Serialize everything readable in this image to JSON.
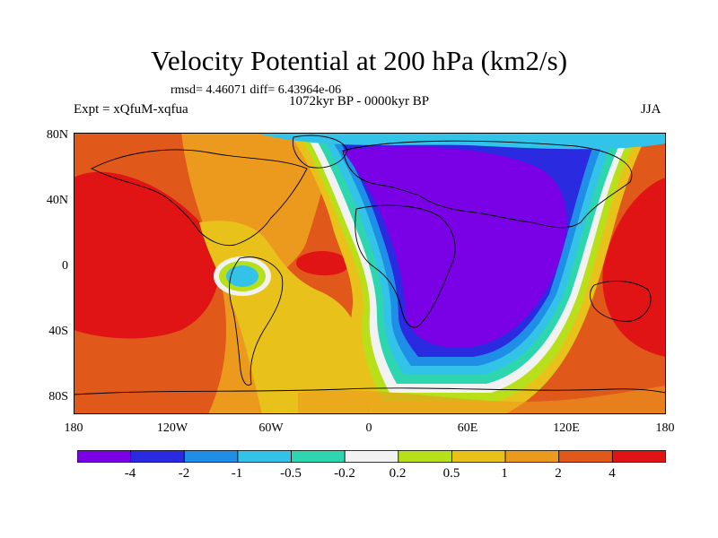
{
  "title": "Velocity Potential at 200 hPa (km2/s)",
  "stats": "rmsd= 4.46071 diff= 6.43964e-06",
  "period": "1072kyr BP - 0000kyr BP",
  "experiment": "Expt = xQfuM-xqfua",
  "season": "JJA",
  "lat_labels": [
    "80N",
    "40N",
    "0",
    "40S",
    "80S"
  ],
  "lon_labels": [
    "180",
    "120W",
    "60W",
    "0",
    "60E",
    "120E",
    "180"
  ],
  "colorbar": {
    "labels": [
      "-4",
      "-2",
      "-1",
      "-0.5",
      "-0.2",
      "0.2",
      "0.5",
      "1",
      "2",
      "4"
    ],
    "colors": [
      "#7a00e6",
      "#2a2ae0",
      "#1f8ee6",
      "#33c2e8",
      "#2ed6b0",
      "#f2f2f2",
      "#b8e01a",
      "#e8c21a",
      "#eb9a1e",
      "#e0581a",
      "#e01414"
    ]
  },
  "colors": {
    "violet": "#7a00e6",
    "blue": "#2a2ae0",
    "midblue": "#1f8ee6",
    "lightblue": "#33c2e8",
    "cyan": "#2ed6b0",
    "white": "#f2f2f2",
    "yellowgreen": "#b8e01a",
    "gold": "#e8c21a",
    "orange": "#eb9a1e",
    "redorange": "#e0581a",
    "red": "#e01414"
  }
}
